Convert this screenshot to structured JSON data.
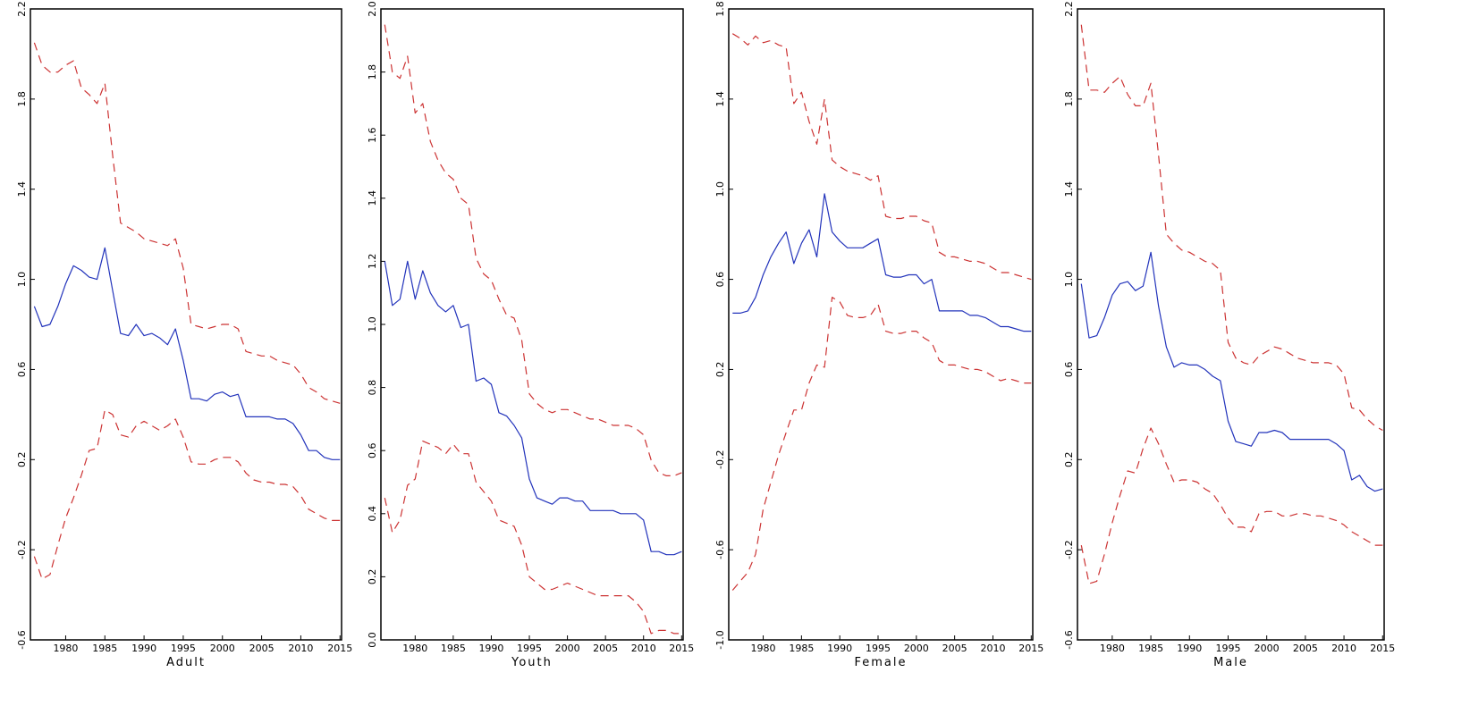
{
  "chart_data": [
    {
      "type": "line",
      "xlabel": "Adult",
      "x": [
        1976,
        1977,
        1978,
        1979,
        1980,
        1981,
        1982,
        1983,
        1984,
        1985,
        1986,
        1987,
        1988,
        1989,
        1990,
        1991,
        1992,
        1993,
        1994,
        1995,
        1996,
        1997,
        1998,
        1999,
        2000,
        2001,
        2002,
        2003,
        2004,
        2005,
        2006,
        2007,
        2008,
        2009,
        2010,
        2011,
        2012,
        2013,
        2014,
        2015
      ],
      "xticks": [
        1980,
        1985,
        1990,
        1995,
        2000,
        2005,
        2010,
        2015
      ],
      "ylim": [
        -0.6,
        2.2
      ],
      "yticks": [
        "-0.6",
        "-0.2",
        "0.2",
        "0.6",
        "1.0",
        "1.4",
        "1.8",
        "2.2"
      ],
      "series": [
        {
          "color": "#cc3333",
          "dashed": true,
          "values": [
            2.05,
            1.95,
            1.92,
            1.92,
            1.95,
            1.97,
            1.85,
            1.82,
            1.78,
            1.87,
            1.55,
            1.25,
            1.23,
            1.21,
            1.18,
            1.17,
            1.16,
            1.15,
            1.18,
            1.05,
            0.8,
            0.79,
            0.78,
            0.79,
            0.8,
            0.8,
            0.78,
            0.68,
            0.67,
            0.66,
            0.66,
            0.64,
            0.63,
            0.62,
            0.58,
            0.52,
            0.5,
            0.47,
            0.46,
            0.45
          ]
        },
        {
          "color": "#2233bb",
          "dashed": false,
          "values": [
            0.88,
            0.79,
            0.8,
            0.88,
            0.98,
            1.06,
            1.04,
            1.01,
            1.0,
            1.14,
            0.95,
            0.76,
            0.75,
            0.8,
            0.75,
            0.76,
            0.74,
            0.71,
            0.78,
            0.64,
            0.47,
            0.47,
            0.46,
            0.49,
            0.5,
            0.48,
            0.49,
            0.39,
            0.39,
            0.39,
            0.39,
            0.38,
            0.38,
            0.36,
            0.31,
            0.24,
            0.24,
            0.21,
            0.2,
            0.2
          ]
        },
        {
          "color": "#cc3333",
          "dashed": true,
          "values": [
            -0.23,
            -0.33,
            -0.31,
            -0.18,
            -0.06,
            0.03,
            0.13,
            0.24,
            0.25,
            0.42,
            0.4,
            0.31,
            0.3,
            0.35,
            0.37,
            0.35,
            0.33,
            0.35,
            0.38,
            0.3,
            0.19,
            0.18,
            0.18,
            0.2,
            0.21,
            0.21,
            0.19,
            0.14,
            0.11,
            0.1,
            0.1,
            0.09,
            0.09,
            0.08,
            0.04,
            -0.02,
            -0.04,
            -0.06,
            -0.07,
            -0.07
          ]
        }
      ]
    },
    {
      "type": "line",
      "xlabel": "Youth",
      "x": [
        1976,
        1977,
        1978,
        1979,
        1980,
        1981,
        1982,
        1983,
        1984,
        1985,
        1986,
        1987,
        1988,
        1989,
        1990,
        1991,
        1992,
        1993,
        1994,
        1995,
        1996,
        1997,
        1998,
        1999,
        2000,
        2001,
        2002,
        2003,
        2004,
        2005,
        2006,
        2007,
        2008,
        2009,
        2010,
        2011,
        2012,
        2013,
        2014,
        2015
      ],
      "xticks": [
        1980,
        1985,
        1990,
        1995,
        2000,
        2005,
        2010,
        2015
      ],
      "ylim": [
        0.0,
        2.0
      ],
      "yticks": [
        "0.0",
        "0.2",
        "0.4",
        "0.6",
        "0.8",
        "1.0",
        "1.2",
        "1.4",
        "1.6",
        "1.8",
        "2.0"
      ],
      "series": [
        {
          "color": "#cc3333",
          "dashed": true,
          "values": [
            1.95,
            1.8,
            1.78,
            1.85,
            1.67,
            1.7,
            1.58,
            1.52,
            1.48,
            1.46,
            1.4,
            1.38,
            1.21,
            1.16,
            1.14,
            1.08,
            1.03,
            1.02,
            0.95,
            0.78,
            0.75,
            0.73,
            0.72,
            0.73,
            0.73,
            0.72,
            0.71,
            0.7,
            0.7,
            0.69,
            0.68,
            0.68,
            0.68,
            0.67,
            0.65,
            0.57,
            0.53,
            0.52,
            0.52,
            0.53
          ]
        },
        {
          "color": "#2233bb",
          "dashed": false,
          "values": [
            1.2,
            1.06,
            1.08,
            1.2,
            1.08,
            1.17,
            1.1,
            1.06,
            1.04,
            1.06,
            0.99,
            1.0,
            0.82,
            0.83,
            0.81,
            0.72,
            0.71,
            0.68,
            0.64,
            0.51,
            0.45,
            0.44,
            0.43,
            0.45,
            0.45,
            0.44,
            0.44,
            0.41,
            0.41,
            0.41,
            0.41,
            0.4,
            0.4,
            0.4,
            0.38,
            0.28,
            0.28,
            0.27,
            0.27,
            0.28
          ]
        },
        {
          "color": "#cc3333",
          "dashed": true,
          "values": [
            0.45,
            0.34,
            0.38,
            0.49,
            0.51,
            0.63,
            0.62,
            0.61,
            0.59,
            0.62,
            0.59,
            0.59,
            0.5,
            0.47,
            0.44,
            0.38,
            0.37,
            0.36,
            0.3,
            0.2,
            0.18,
            0.16,
            0.16,
            0.17,
            0.18,
            0.17,
            0.16,
            0.15,
            0.14,
            0.14,
            0.14,
            0.14,
            0.14,
            0.12,
            0.09,
            0.02,
            0.03,
            0.03,
            0.02,
            0.02
          ]
        }
      ]
    },
    {
      "type": "line",
      "xlabel": "Female",
      "x": [
        1976,
        1977,
        1978,
        1979,
        1980,
        1981,
        1982,
        1983,
        1984,
        1985,
        1986,
        1987,
        1988,
        1989,
        1990,
        1991,
        1992,
        1993,
        1994,
        1995,
        1996,
        1997,
        1998,
        1999,
        2000,
        2001,
        2002,
        2003,
        2004,
        2005,
        2006,
        2007,
        2008,
        2009,
        2010,
        2011,
        2012,
        2013,
        2014,
        2015
      ],
      "xticks": [
        1980,
        1985,
        1990,
        1995,
        2000,
        2005,
        2010,
        2015
      ],
      "ylim": [
        -1.0,
        1.8
      ],
      "yticks": [
        "-1.0",
        "-0.6",
        "-0.2",
        "0.2",
        "0.6",
        "1.0",
        "1.4",
        "1.8"
      ],
      "series": [
        {
          "color": "#cc3333",
          "dashed": true,
          "values": [
            1.69,
            1.67,
            1.64,
            1.68,
            1.65,
            1.66,
            1.64,
            1.63,
            1.38,
            1.43,
            1.3,
            1.2,
            1.4,
            1.13,
            1.1,
            1.08,
            1.07,
            1.06,
            1.04,
            1.06,
            0.88,
            0.87,
            0.87,
            0.88,
            0.88,
            0.86,
            0.85,
            0.72,
            0.7,
            0.7,
            0.69,
            0.68,
            0.68,
            0.67,
            0.65,
            0.63,
            0.63,
            0.62,
            0.61,
            0.6
          ]
        },
        {
          "color": "#2233bb",
          "dashed": false,
          "values": [
            0.45,
            0.45,
            0.46,
            0.52,
            0.62,
            0.7,
            0.76,
            0.81,
            0.67,
            0.76,
            0.82,
            0.7,
            0.98,
            0.81,
            0.77,
            0.74,
            0.74,
            0.74,
            0.76,
            0.78,
            0.62,
            0.61,
            0.61,
            0.62,
            0.62,
            0.58,
            0.6,
            0.46,
            0.46,
            0.46,
            0.46,
            0.44,
            0.44,
            0.43,
            0.41,
            0.39,
            0.39,
            0.38,
            0.37,
            0.37
          ]
        },
        {
          "color": "#cc3333",
          "dashed": true,
          "values": [
            -0.78,
            -0.74,
            -0.7,
            -0.62,
            -0.42,
            -0.3,
            -0.18,
            -0.08,
            0.02,
            0.02,
            0.14,
            0.22,
            0.21,
            0.52,
            0.5,
            0.44,
            0.43,
            0.43,
            0.44,
            0.49,
            0.37,
            0.36,
            0.36,
            0.37,
            0.37,
            0.34,
            0.32,
            0.24,
            0.22,
            0.22,
            0.21,
            0.2,
            0.2,
            0.19,
            0.17,
            0.15,
            0.16,
            0.15,
            0.14,
            0.14
          ]
        }
      ]
    },
    {
      "type": "line",
      "xlabel": "Male",
      "x": [
        1976,
        1977,
        1978,
        1979,
        1980,
        1981,
        1982,
        1983,
        1984,
        1985,
        1986,
        1987,
        1988,
        1989,
        1990,
        1991,
        1992,
        1993,
        1994,
        1995,
        1996,
        1997,
        1998,
        1999,
        2000,
        2001,
        2002,
        2003,
        2004,
        2005,
        2006,
        2007,
        2008,
        2009,
        2010,
        2011,
        2012,
        2013,
        2014,
        2015
      ],
      "xticks": [
        1980,
        1985,
        1990,
        1995,
        2000,
        2005,
        2010,
        2015
      ],
      "ylim": [
        -0.6,
        2.2
      ],
      "yticks": [
        "-0.6",
        "-0.2",
        "0.2",
        "0.6",
        "1.0",
        "1.4",
        "1.8",
        "2.2"
      ],
      "series": [
        {
          "color": "#cc3333",
          "dashed": true,
          "values": [
            2.13,
            1.84,
            1.84,
            1.83,
            1.87,
            1.9,
            1.82,
            1.77,
            1.77,
            1.87,
            1.55,
            1.2,
            1.16,
            1.13,
            1.12,
            1.1,
            1.08,
            1.07,
            1.04,
            0.72,
            0.65,
            0.63,
            0.62,
            0.66,
            0.68,
            0.7,
            0.69,
            0.67,
            0.65,
            0.64,
            0.63,
            0.63,
            0.63,
            0.62,
            0.58,
            0.43,
            0.42,
            0.38,
            0.35,
            0.33
          ]
        },
        {
          "color": "#2233bb",
          "dashed": false,
          "values": [
            0.98,
            0.74,
            0.75,
            0.83,
            0.93,
            0.98,
            0.99,
            0.95,
            0.97,
            1.12,
            0.88,
            0.7,
            0.61,
            0.63,
            0.62,
            0.62,
            0.6,
            0.57,
            0.55,
            0.37,
            0.28,
            0.27,
            0.26,
            0.32,
            0.32,
            0.33,
            0.32,
            0.29,
            0.29,
            0.29,
            0.29,
            0.29,
            0.29,
            0.27,
            0.24,
            0.11,
            0.13,
            0.08,
            0.06,
            0.07
          ]
        },
        {
          "color": "#cc3333",
          "dashed": true,
          "values": [
            -0.18,
            -0.35,
            -0.34,
            -0.22,
            -0.08,
            0.04,
            0.15,
            0.14,
            0.25,
            0.34,
            0.27,
            0.18,
            0.1,
            0.11,
            0.11,
            0.1,
            0.07,
            0.05,
            0.0,
            -0.06,
            -0.1,
            -0.1,
            -0.12,
            -0.04,
            -0.03,
            -0.03,
            -0.05,
            -0.05,
            -0.04,
            -0.04,
            -0.05,
            -0.05,
            -0.06,
            -0.07,
            -0.09,
            -0.12,
            -0.14,
            -0.16,
            -0.18,
            -0.18
          ]
        }
      ]
    }
  ]
}
